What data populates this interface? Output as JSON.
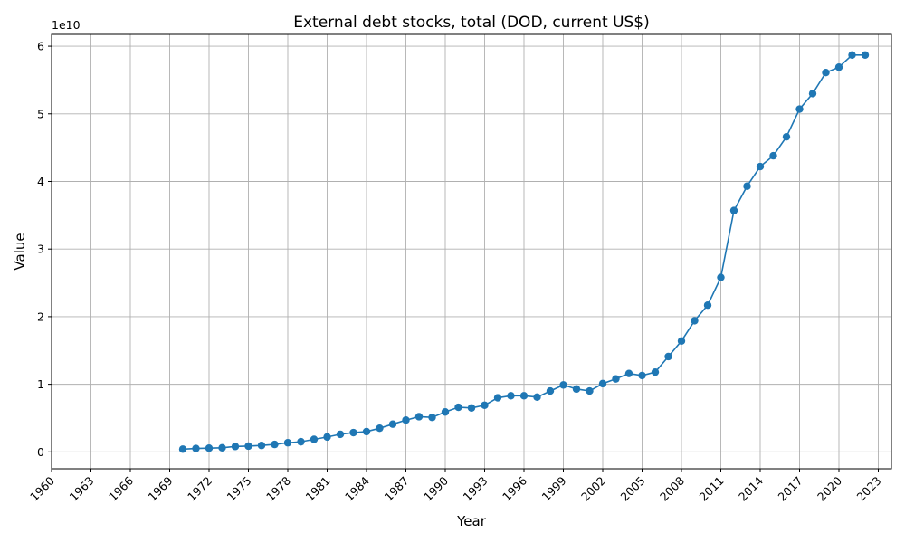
{
  "chart_data": {
    "type": "line",
    "title": "External debt stocks, total (DOD, current US$)",
    "xlabel": "Year",
    "ylabel": "Value",
    "y_offset_label": "1e10",
    "xlim": [
      1960,
      2024
    ],
    "ylim": [
      -2500000000,
      61750000000
    ],
    "x_ticks": [
      1960,
      1963,
      1966,
      1969,
      1972,
      1975,
      1978,
      1981,
      1984,
      1987,
      1990,
      1993,
      1996,
      1999,
      2002,
      2005,
      2008,
      2011,
      2014,
      2017,
      2020,
      2023
    ],
    "y_ticks": [
      0,
      10000000000,
      20000000000,
      30000000000,
      40000000000,
      50000000000,
      60000000000
    ],
    "y_tick_labels": [
      "0",
      "1",
      "2",
      "3",
      "4",
      "5",
      "6"
    ],
    "grid": true,
    "series_color": "#1f77b4",
    "x": [
      1970,
      1971,
      1972,
      1973,
      1974,
      1975,
      1976,
      1977,
      1978,
      1979,
      1980,
      1981,
      1982,
      1983,
      1984,
      1985,
      1986,
      1987,
      1988,
      1989,
      1990,
      1991,
      1992,
      1993,
      1994,
      1995,
      1996,
      1997,
      1998,
      1999,
      2000,
      2001,
      2002,
      2003,
      2004,
      2005,
      2006,
      2007,
      2008,
      2009,
      2010,
      2011,
      2012,
      2013,
      2014,
      2015,
      2016,
      2017,
      2018,
      2019,
      2020,
      2021,
      2022
    ],
    "values": [
      400000000,
      500000000,
      550000000,
      600000000,
      800000000,
      850000000,
      950000000,
      1100000000,
      1350000000,
      1500000000,
      1850000000,
      2200000000,
      2600000000,
      2850000000,
      3000000000,
      3500000000,
      4100000000,
      4700000000,
      5200000000,
      5100000000,
      5900000000,
      6600000000,
      6500000000,
      6900000000,
      8000000000,
      8300000000,
      8300000000,
      8100000000,
      9000000000,
      9900000000,
      9300000000,
      9000000000,
      10100000000,
      10800000000,
      11600000000,
      11300000000,
      11800000000,
      14100000000,
      16400000000,
      19400000000,
      21700000000,
      25800000000,
      35700000000,
      39300000000,
      42200000000,
      43800000000,
      46600000000,
      50700000000,
      53000000000,
      56100000000,
      56900000000,
      58700000000,
      58700000000
    ]
  }
}
